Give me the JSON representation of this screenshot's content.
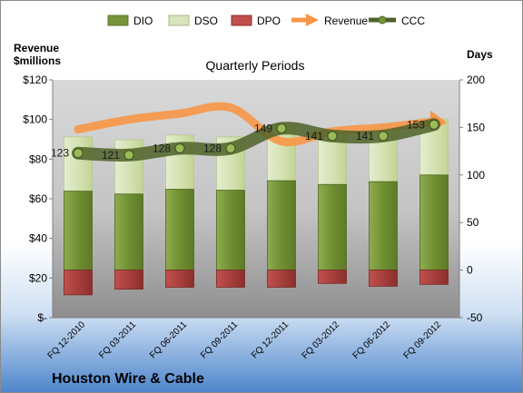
{
  "company": "Houston Wire & Cable",
  "chart_data": {
    "type": "bar",
    "title": "Quarterly Periods",
    "categories": [
      "FQ 12-2010",
      "FQ 03-2011",
      "FQ 06-2011",
      "FQ 09-2011",
      "FQ 12-2011",
      "FQ 03-2012",
      "FQ 06-2012",
      "FQ 09-2012"
    ],
    "left_axis": {
      "label_line1": "Revenue",
      "label_line2": "$millions",
      "ylim": [
        0,
        120
      ],
      "ticks": [
        0,
        20,
        40,
        60,
        80,
        100,
        120
      ],
      "tick_labels": [
        "$-",
        "$20",
        "$40",
        "$60",
        "$80",
        "$100",
        "$120"
      ]
    },
    "right_axis": {
      "label": "Days",
      "ylim": [
        -50,
        200
      ],
      "ticks": [
        -50,
        0,
        50,
        100,
        150,
        200
      ],
      "tick_labels": [
        "-50",
        "0",
        "50",
        "100",
        "150",
        "200"
      ]
    },
    "series": [
      {
        "name": "DIO",
        "kind": "stacked-bar",
        "axis": "right",
        "color": "#77933c",
        "values": [
          83,
          80,
          85,
          84,
          94,
          90,
          93,
          100
        ]
      },
      {
        "name": "DSO",
        "kind": "stacked-bar",
        "axis": "right",
        "color": "#d7e4bd",
        "values": [
          57,
          57,
          57,
          56,
          57,
          56,
          56,
          59
        ]
      },
      {
        "name": "DPO",
        "kind": "negative-bar",
        "axis": "right",
        "color": "#c0504d",
        "values": [
          -26,
          -20,
          -18,
          -18,
          -18,
          -14,
          -17,
          -15
        ]
      },
      {
        "name": "Revenue",
        "kind": "line",
        "axis": "left",
        "color": "#f79646",
        "values": [
          95,
          100,
          103,
          106,
          89,
          94,
          96,
          99
        ]
      },
      {
        "name": "CCC",
        "kind": "line",
        "axis": "right",
        "color": "#4f6228",
        "values": [
          123,
          121,
          128,
          128,
          149,
          141,
          141,
          153
        ],
        "labels": [
          "123",
          "121",
          "128",
          "128",
          "149",
          "141",
          "141",
          "153"
        ]
      }
    ],
    "legend": [
      "DIO",
      "DSO",
      "DPO",
      "Revenue",
      "CCC"
    ],
    "legend_position": "top",
    "grid": false,
    "plot_background": "gray-gradient"
  }
}
